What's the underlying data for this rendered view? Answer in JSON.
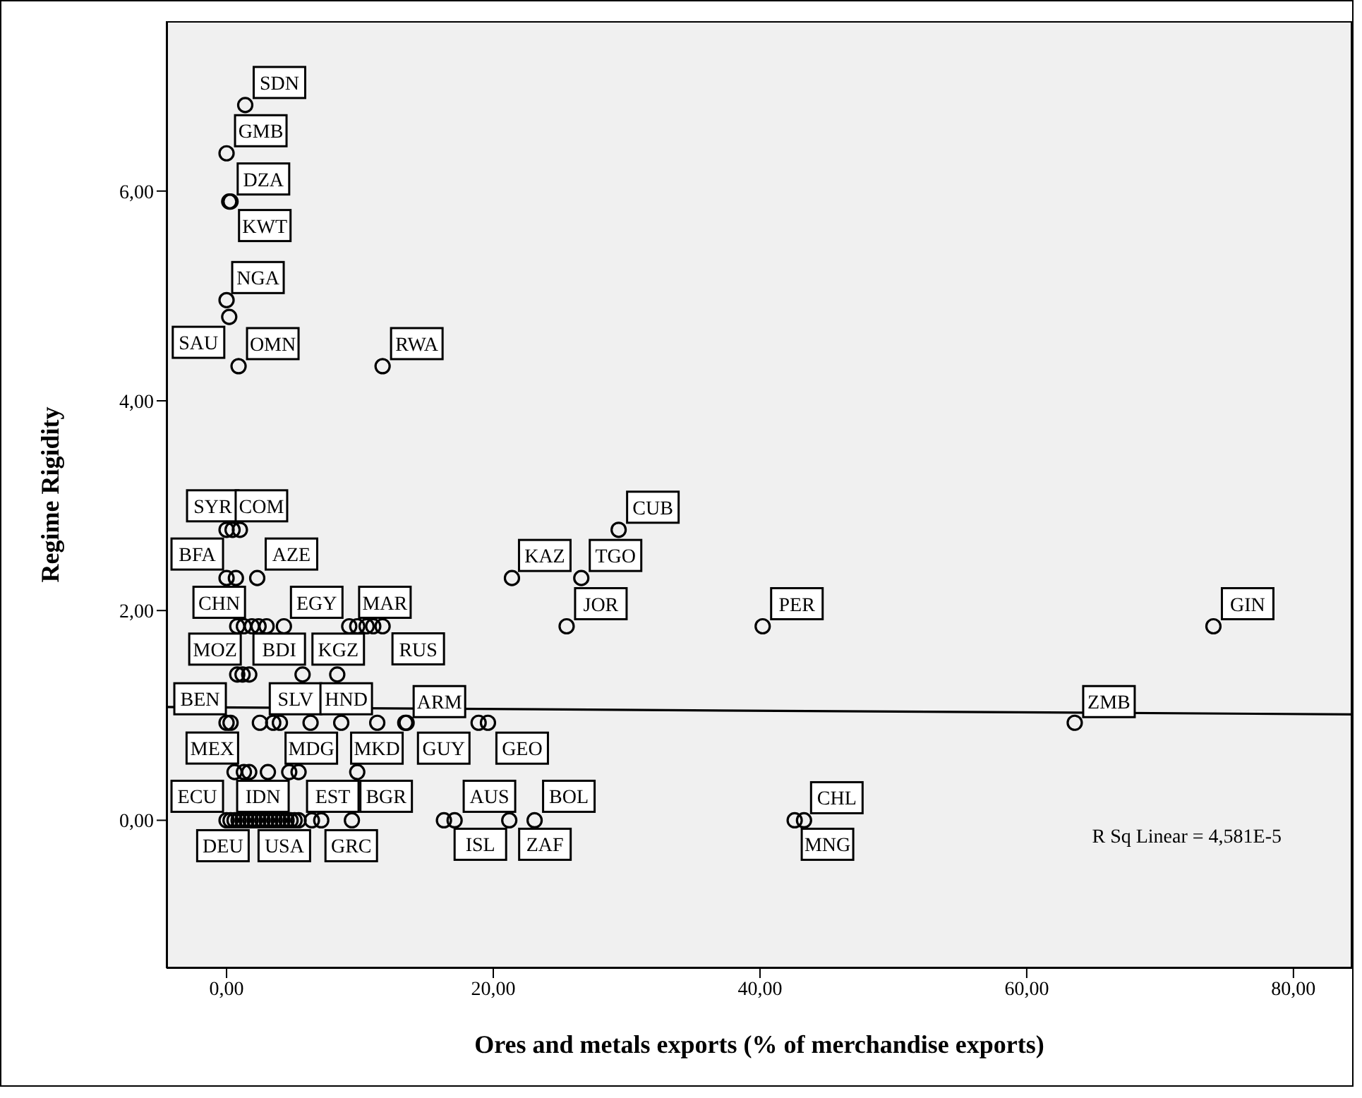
{
  "chart_data": {
    "type": "scatter",
    "xlabel": "Ores and metals exports (% of merchandise exports)",
    "ylabel": "Regime Rigidity",
    "xlim": [
      -4.5,
      84.4
    ],
    "ylim": [
      -1.41,
      7.62
    ],
    "xticks": [
      {
        "value": 0,
        "label": "0,00"
      },
      {
        "value": 20,
        "label": "20,00"
      },
      {
        "value": 40,
        "label": "40,00"
      },
      {
        "value": 60,
        "label": "60,00"
      },
      {
        "value": 80,
        "label": "80,00"
      }
    ],
    "yticks": [
      {
        "value": 0,
        "label": "0,00"
      },
      {
        "value": 2,
        "label": "2,00"
      },
      {
        "value": 4,
        "label": "4,00"
      },
      {
        "value": 6,
        "label": "6,00"
      }
    ],
    "series": [
      {
        "color": "#000000",
        "marker": "circle",
        "x": [
          1.4,
          0,
          0.2,
          0.3,
          0,
          0.2,
          0.9,
          11.7,
          0,
          0.45,
          1.0,
          29.4,
          0,
          0.7,
          2.3,
          21.4,
          26.6,
          0.8,
          1.3,
          1.9,
          2.4,
          3.0,
          4.3,
          9.2,
          9.8,
          10.5,
          11.0,
          11.7,
          25.5,
          40.2,
          74.0,
          0.8,
          1.2,
          1.7,
          5.7,
          8.3,
          0,
          0.3,
          2.5,
          3.5,
          4.0,
          6.3,
          8.6,
          11.3,
          13.4,
          13.5,
          18.9,
          19.6,
          63.6,
          0.6,
          1.3,
          1.7,
          3.1,
          4.7,
          5.4,
          9.8,
          0,
          0.3,
          0.6,
          0.9,
          1.2,
          1.5,
          1.8,
          2.1,
          2.4,
          2.7,
          3.0,
          3.3,
          3.6,
          3.9,
          4.2,
          4.5,
          4.8,
          5.1,
          5.4,
          6.4,
          7.1,
          9.4,
          16.3,
          17.1,
          21.2,
          23.1,
          42.6,
          43.3
        ],
        "values": [
          6.82,
          6.36,
          5.9,
          5.9,
          4.96,
          4.8,
          4.33,
          4.33,
          2.77,
          2.77,
          2.77,
          2.77,
          2.31,
          2.31,
          2.31,
          2.31,
          2.31,
          1.85,
          1.85,
          1.85,
          1.85,
          1.85,
          1.85,
          1.85,
          1.85,
          1.85,
          1.85,
          1.85,
          1.85,
          1.85,
          1.85,
          1.39,
          1.39,
          1.39,
          1.39,
          1.39,
          0.93,
          0.93,
          0.93,
          0.93,
          0.93,
          0.93,
          0.93,
          0.93,
          0.93,
          0.93,
          0.93,
          0.93,
          0.93,
          0.46,
          0.46,
          0.46,
          0.46,
          0.46,
          0.46,
          0.46,
          0,
          0,
          0,
          0,
          0,
          0,
          0,
          0,
          0,
          0,
          0,
          0,
          0,
          0,
          0,
          0,
          0,
          0,
          0,
          0,
          0,
          0,
          0,
          0,
          0,
          0,
          0,
          0
        ]
      },
      {
        "type": "line",
        "color": "#000000",
        "x": [
          -4.5,
          84.4
        ],
        "values": [
          1.08,
          1.01
        ]
      }
    ],
    "annotations": [
      {
        "text": "SDN",
        "x": 1.4,
        "y": 6.82
      },
      {
        "text": "GMB",
        "x": 0,
        "y": 6.36
      },
      {
        "text": "DZA",
        "x": 0.2,
        "y": 5.9
      },
      {
        "text": "KWT",
        "x": 0.3,
        "y": 5.9
      },
      {
        "text": "NGA",
        "x": 0,
        "y": 4.96
      },
      {
        "text": "SAU",
        "x": 0.2,
        "y": 4.8
      },
      {
        "text": "OMN",
        "x": 0.9,
        "y": 4.33
      },
      {
        "text": "RWA",
        "x": 11.7,
        "y": 4.33
      },
      {
        "text": "SYR",
        "x": 0,
        "y": 2.77
      },
      {
        "text": "COM",
        "x": 1.0,
        "y": 2.77
      },
      {
        "text": "CUB",
        "x": 29.4,
        "y": 2.77
      },
      {
        "text": "BFA",
        "x": 0,
        "y": 2.31
      },
      {
        "text": "AZE",
        "x": 2.3,
        "y": 2.31
      },
      {
        "text": "KAZ",
        "x": 21.4,
        "y": 2.31
      },
      {
        "text": "TGO",
        "x": 26.6,
        "y": 2.31
      },
      {
        "text": "CHN",
        "x": 0.8,
        "y": 1.85
      },
      {
        "text": "EGY",
        "x": 4.3,
        "y": 1.85
      },
      {
        "text": "MAR",
        "x": 9.2,
        "y": 1.85
      },
      {
        "text": "RUS",
        "x": 11.7,
        "y": 1.85
      },
      {
        "text": "JOR",
        "x": 25.5,
        "y": 1.85
      },
      {
        "text": "PER",
        "x": 40.2,
        "y": 1.85
      },
      {
        "text": "GIN",
        "x": 74.0,
        "y": 1.85
      },
      {
        "text": "MOZ",
        "x": 0.8,
        "y": 1.39
      },
      {
        "text": "BDI",
        "x": 1.7,
        "y": 1.39
      },
      {
        "text": "KGZ",
        "x": 5.7,
        "y": 1.39
      },
      {
        "text": "BEN",
        "x": 0,
        "y": 0.93
      },
      {
        "text": "SLV",
        "x": 2.5,
        "y": 0.93
      },
      {
        "text": "MDG",
        "x": 4.0,
        "y": 0.93
      },
      {
        "text": "HND",
        "x": 6.3,
        "y": 0.93
      },
      {
        "text": "MKD",
        "x": 8.6,
        "y": 0.93
      },
      {
        "text": "ARM",
        "x": 13.5,
        "y": 0.93
      },
      {
        "text": "GUY",
        "x": 13.4,
        "y": 0.93
      },
      {
        "text": "GEO",
        "x": 19.6,
        "y": 0.93
      },
      {
        "text": "ZMB",
        "x": 63.6,
        "y": 0.93
      },
      {
        "text": "MEX",
        "x": 0.6,
        "y": 0.46
      },
      {
        "text": "ECU",
        "x": 0,
        "y": 0
      },
      {
        "text": "IDN",
        "x": 0.9,
        "y": 0
      },
      {
        "text": "EST",
        "x": 5.4,
        "y": 0
      },
      {
        "text": "BGR",
        "x": 9.4,
        "y": 0
      },
      {
        "text": "DEU",
        "x": 1.5,
        "y": 0
      },
      {
        "text": "USA",
        "x": 2.4,
        "y": 0
      },
      {
        "text": "GRC",
        "x": 7.1,
        "y": 0
      },
      {
        "text": "AUS",
        "x": 16.3,
        "y": 0
      },
      {
        "text": "ISL",
        "x": 17.1,
        "y": 0
      },
      {
        "text": "BOL",
        "x": 23.1,
        "y": 0
      },
      {
        "text": "ZAF",
        "x": 21.2,
        "y": 0
      },
      {
        "text": "CHL",
        "x": 43.3,
        "y": 0
      },
      {
        "text": "MNG",
        "x": 42.6,
        "y": 0
      },
      "R Sq Linear = 4,581E-5"
    ]
  }
}
